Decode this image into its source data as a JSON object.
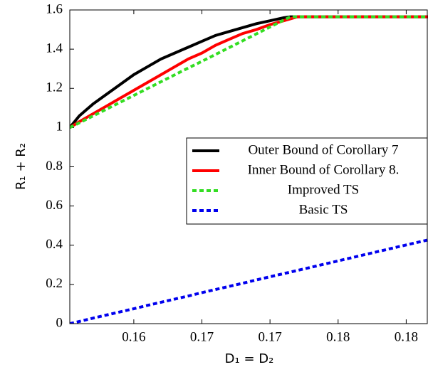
{
  "chart_data": {
    "type": "line",
    "x_label": "D₁ = D₂",
    "y_label": "R₁ + R₂",
    "x": [
      0.1553,
      0.156,
      0.157,
      0.158,
      0.159,
      0.16,
      0.161,
      0.162,
      0.163,
      0.164,
      0.165,
      0.166,
      0.167,
      0.168,
      0.169,
      0.17,
      0.171,
      0.1715,
      0.172,
      0.175,
      0.178,
      0.1816
    ],
    "series": [
      {
        "name": "Outer Bound of Corollary 7",
        "color": "#000000",
        "dash": "solid",
        "values": [
          1.0,
          1.06,
          1.12,
          1.17,
          1.22,
          1.27,
          1.31,
          1.35,
          1.38,
          1.41,
          1.44,
          1.47,
          1.49,
          1.51,
          1.53,
          1.545,
          1.56,
          1.565,
          1.565,
          1.565,
          1.565,
          1.565
        ]
      },
      {
        "name": "Inner Bound of Corollary 8.",
        "color": "#ff0000",
        "dash": "solid",
        "values": [
          1.0,
          1.03,
          1.07,
          1.11,
          1.15,
          1.19,
          1.23,
          1.27,
          1.31,
          1.35,
          1.38,
          1.42,
          1.45,
          1.48,
          1.5,
          1.525,
          1.545,
          1.555,
          1.565,
          1.565,
          1.565,
          1.565
        ]
      },
      {
        "name": "Improved TS",
        "color": "#33dd22",
        "dash": "dashed",
        "values": [
          1.0,
          1.024,
          1.059,
          1.094,
          1.129,
          1.164,
          1.199,
          1.234,
          1.269,
          1.304,
          1.338,
          1.373,
          1.408,
          1.443,
          1.478,
          1.513,
          1.548,
          1.565,
          1.565,
          1.565,
          1.565,
          1.565
        ]
      },
      {
        "name": "Basic TS",
        "color": "#0000ee",
        "dash": "dashed",
        "values": [
          0.0,
          0.011,
          0.028,
          0.044,
          0.06,
          0.076,
          0.093,
          0.109,
          0.125,
          0.141,
          0.158,
          0.174,
          0.19,
          0.206,
          0.223,
          0.239,
          0.255,
          0.263,
          0.271,
          0.32,
          0.369,
          0.427
        ]
      }
    ],
    "xlim": [
      0.1553,
      0.1816
    ],
    "xticks": [
      {
        "value": 0.16,
        "label": "0.16"
      },
      {
        "value": 0.165,
        "label": "0.17"
      },
      {
        "value": 0.17,
        "label": "0.17"
      },
      {
        "value": 0.175,
        "label": "0.18"
      },
      {
        "value": 0.18,
        "label": "0.18"
      }
    ],
    "ylim": [
      0,
      1.6
    ],
    "yticks": [
      0,
      0.2,
      0.4,
      0.6,
      0.8,
      1,
      1.2,
      1.4,
      1.6
    ],
    "legend": "center right",
    "grid": false
  }
}
